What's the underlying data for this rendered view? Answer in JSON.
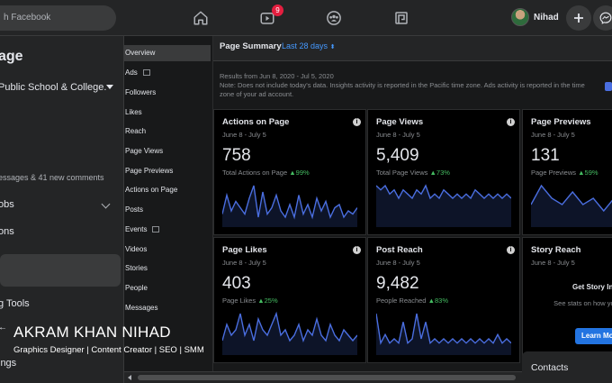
{
  "topbar": {
    "search_placeholder": "h Facebook",
    "notification_count": "9",
    "user_name": "Nihad"
  },
  "left_panel": {
    "title": "age",
    "page_name": "Public School & College.",
    "messages_summary": "essages & 41 new comments",
    "items": [
      "obs",
      "ons",
      "g Tools",
      "ings"
    ],
    "arrow": "←"
  },
  "watermark": {
    "name": "AKRAM KHAN NIHAD",
    "subtitle": "Graphics Designer | Content Creator | SEO | SMM"
  },
  "insights_nav": {
    "items": [
      "Overview",
      "Ads",
      "Followers",
      "Likes",
      "Reach",
      "Page Views",
      "Page Previews",
      "Actions on Page",
      "Posts",
      "Events",
      "Videos",
      "Stories",
      "People",
      "Messages"
    ],
    "active_index": 0
  },
  "summary": {
    "title": "Page Summary",
    "range": "Last 28 days",
    "results_line": "Results from Jun 8, 2020 - Jul 5, 2020",
    "note": "Note: Does not include today's data. Insights activity is reported in the Pacific time zone. Ads activity is reported in the time zone of your ad account."
  },
  "cards": [
    {
      "title": "Actions on Page",
      "date": "June 8 - July 5",
      "value": "758",
      "sub_label": "Total Actions on Page",
      "change": "▲99%",
      "spark": [
        3,
        9,
        4,
        7,
        5,
        3,
        8,
        12,
        2,
        10,
        3,
        5,
        9,
        4,
        2,
        6,
        2,
        9,
        3,
        6,
        2,
        8,
        4,
        7,
        2,
        5,
        6,
        2,
        4,
        3,
        5
      ]
    },
    {
      "title": "Page Views",
      "date": "June 8 - July 5",
      "value": "5,409",
      "sub_label": "Total Page Views",
      "change": "▲73%",
      "spark": [
        9,
        8,
        9,
        7,
        8,
        6,
        8,
        7,
        6,
        8,
        7,
        9,
        6,
        7,
        6,
        8,
        7,
        6,
        7,
        6,
        7,
        6,
        8,
        7,
        6,
        7,
        6,
        7,
        6,
        7,
        6
      ]
    },
    {
      "title": "Page Previews",
      "date": "June 8 - July 5",
      "value": "131",
      "sub_label": "Page Previews",
      "change": "▲59%",
      "spark": [
        3,
        6,
        4,
        3,
        5,
        3,
        4,
        2,
        4,
        3,
        5,
        3,
        4,
        6
      ]
    },
    {
      "title": "Page Likes",
      "date": "June 8 - July 5",
      "value": "403",
      "sub_label": "Page Likes",
      "change": "▲25%",
      "spark": [
        2,
        5,
        3,
        4,
        7,
        3,
        5,
        2,
        6,
        4,
        3,
        5,
        7,
        3,
        4,
        2,
        3,
        5,
        2,
        4,
        3,
        6,
        3,
        2,
        5,
        3,
        2,
        4,
        3,
        2,
        3
      ]
    },
    {
      "title": "Post Reach",
      "date": "June 8 - July 5",
      "value": "9,482",
      "sub_label": "People Reached",
      "change": "▲83%",
      "spark": [
        9,
        2,
        4,
        2,
        3,
        2,
        7,
        2,
        3,
        9,
        3,
        7,
        2,
        3,
        2,
        3,
        2,
        3,
        2,
        3,
        2,
        3,
        2,
        3,
        2,
        3,
        2,
        4,
        2,
        3,
        2
      ]
    },
    {
      "title": "Story Reach",
      "date": "June 8 - July 5",
      "cta": "Get Story Insi",
      "desc": "See stats on how your stories have per",
      "button": "Learn Mo"
    }
  ],
  "contacts_label": "Contacts",
  "colors": {
    "accent": "#4599ff",
    "spark": "#4a6ee0",
    "positive": "#45bd62",
    "badge": "#e41e3f"
  }
}
